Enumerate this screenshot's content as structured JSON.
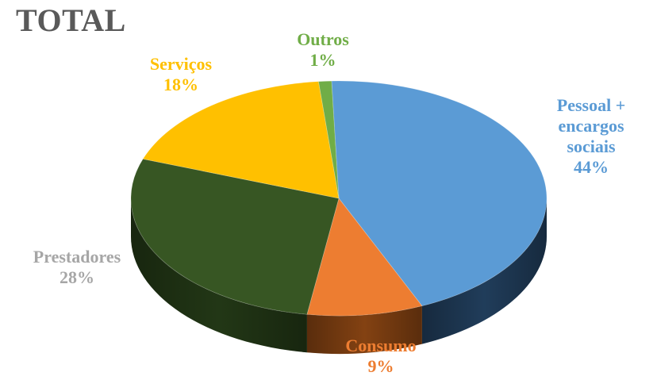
{
  "chart_data": {
    "type": "pie",
    "title": "TOTAL",
    "slices": [
      {
        "label_lines": [
          "Pessoal +",
          "encargos",
          "sociais"
        ],
        "percent_label": "44%",
        "value": 44,
        "color": "#5B9BD5",
        "side_color": "#22405F"
      },
      {
        "label_lines": [
          "Consumo"
        ],
        "percent_label": "9%",
        "value": 9,
        "color": "#ED7D31",
        "side_color": "#8A4513"
      },
      {
        "label_lines": [
          "Prestadores"
        ],
        "percent_label": "28%",
        "value": 28,
        "color": "#375623",
        "side_color": "#243A17"
      },
      {
        "label_lines": [
          "Serviços"
        ],
        "percent_label": "18%",
        "value": 18,
        "color": "#FFC000",
        "side_color": "#9A7400"
      },
      {
        "label_lines": [
          "Outros"
        ],
        "percent_label": "1%",
        "value": 1,
        "color": "#70AD47",
        "side_color": "#3E6427"
      }
    ],
    "label_colors": {
      "Pessoal": "#5B9BD5",
      "Consumo": "#ED7D31",
      "Prestadores": "#A6A6A6",
      "Servicos": "#FFC000",
      "Outros": "#70AD47"
    }
  }
}
